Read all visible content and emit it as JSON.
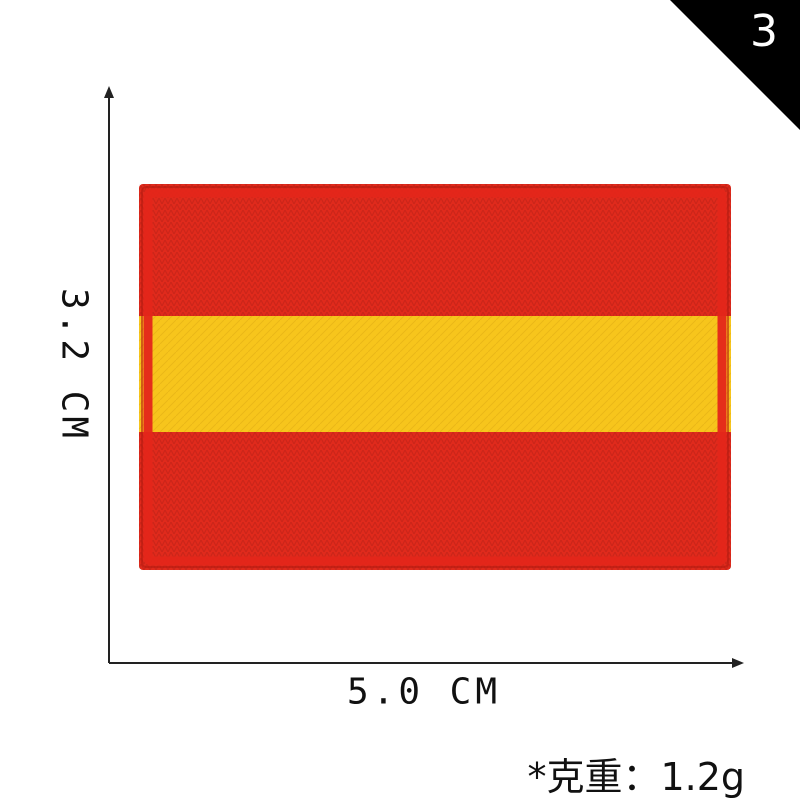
{
  "badge": {
    "number": "3"
  },
  "dimensions": {
    "height_label": "3.2 CM",
    "width_label": "5.0 CM"
  },
  "weight": {
    "label": "*克重：1.2g"
  },
  "flag": {
    "colors": {
      "red": "#e02a1c",
      "yellow": "#f7c51c",
      "border": "#e4261a"
    }
  }
}
